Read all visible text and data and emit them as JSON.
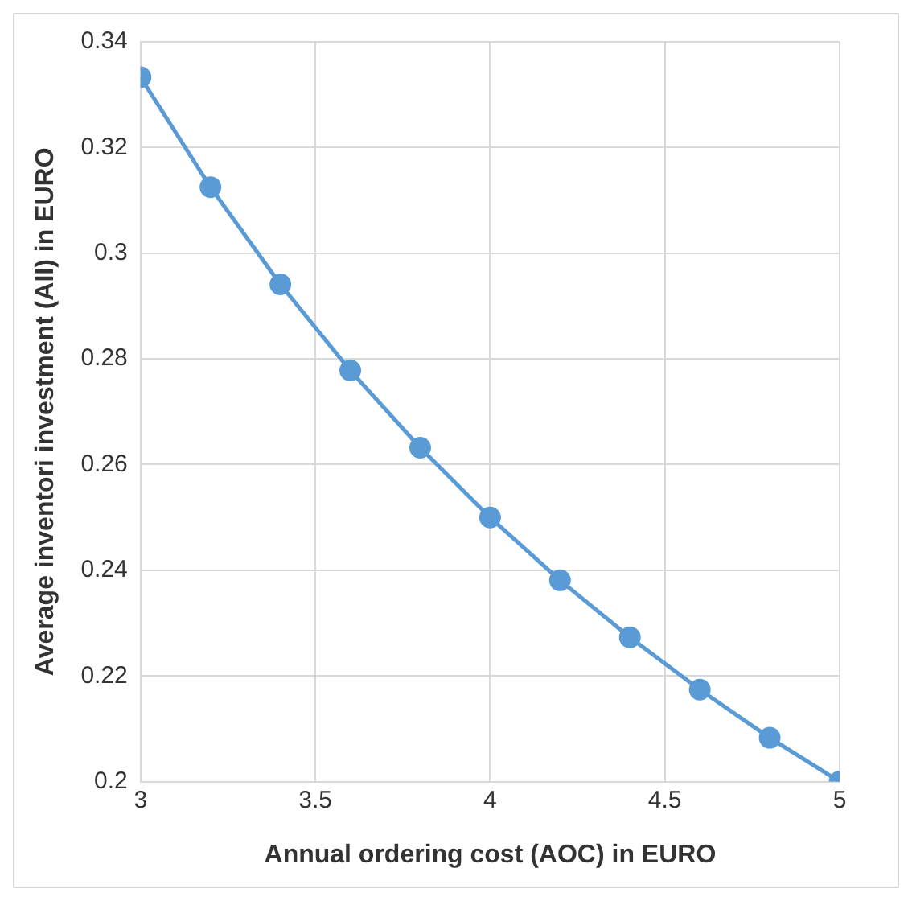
{
  "chart_data": {
    "type": "line",
    "xlabel": "Annual ordering cost (AOC) in EURO",
    "ylabel": "Average inventori investment (AII) in EURO",
    "x": [
      3,
      3.2,
      3.4,
      3.6,
      3.8,
      4,
      4.2,
      4.4,
      4.6,
      4.8,
      5
    ],
    "series": [
      {
        "color": "#5b9bd5",
        "values": [
          0.3333,
          0.3125,
          0.2941,
          0.2778,
          0.2632,
          0.25,
          0.2381,
          0.2273,
          0.2174,
          0.2083,
          0.2
        ]
      }
    ],
    "xlim": [
      3,
      5
    ],
    "xticks": [
      3,
      3.5,
      4,
      4.5,
      5
    ],
    "ylim": [
      0.2,
      0.34
    ],
    "yticks": [
      0.2,
      0.22,
      0.24,
      0.26,
      0.28,
      0.3,
      0.32,
      0.34
    ],
    "grid": true,
    "legend": false,
    "marker": "circle",
    "line_style": "solid"
  }
}
